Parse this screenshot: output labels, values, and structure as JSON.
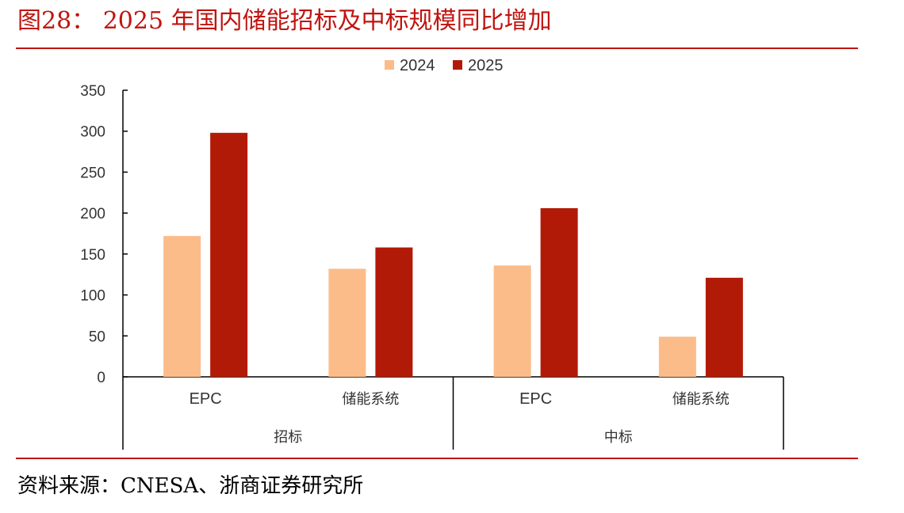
{
  "header": {
    "title": "图28：  2025 年国内储能招标及中标规模同比增加"
  },
  "footer": {
    "source": "资料来源：CNESA、浙商证券研究所"
  },
  "colors": {
    "accent": "#c0140f",
    "series_2024": "#fbbc8a",
    "series_2025": "#b21a08"
  },
  "chart_data": {
    "type": "bar",
    "title": "2025 年国内储能招标及中标规模同比增加",
    "categories": [
      "EPC",
      "储能系统",
      "EPC",
      "储能系统"
    ],
    "groups": [
      {
        "label": "招标",
        "categories": [
          "EPC",
          "储能系统"
        ]
      },
      {
        "label": "中标",
        "categories": [
          "EPC",
          "储能系统"
        ]
      }
    ],
    "series": [
      {
        "name": "2024",
        "values": [
          172,
          132,
          136,
          49
        ]
      },
      {
        "name": "2025",
        "values": [
          298,
          158,
          206,
          121
        ]
      }
    ],
    "ylim": [
      0,
      350
    ],
    "yticks": [
      "0",
      "50",
      "100",
      "150",
      "200",
      "250",
      "300",
      "350"
    ],
    "legend": "top-center",
    "grid": false
  }
}
